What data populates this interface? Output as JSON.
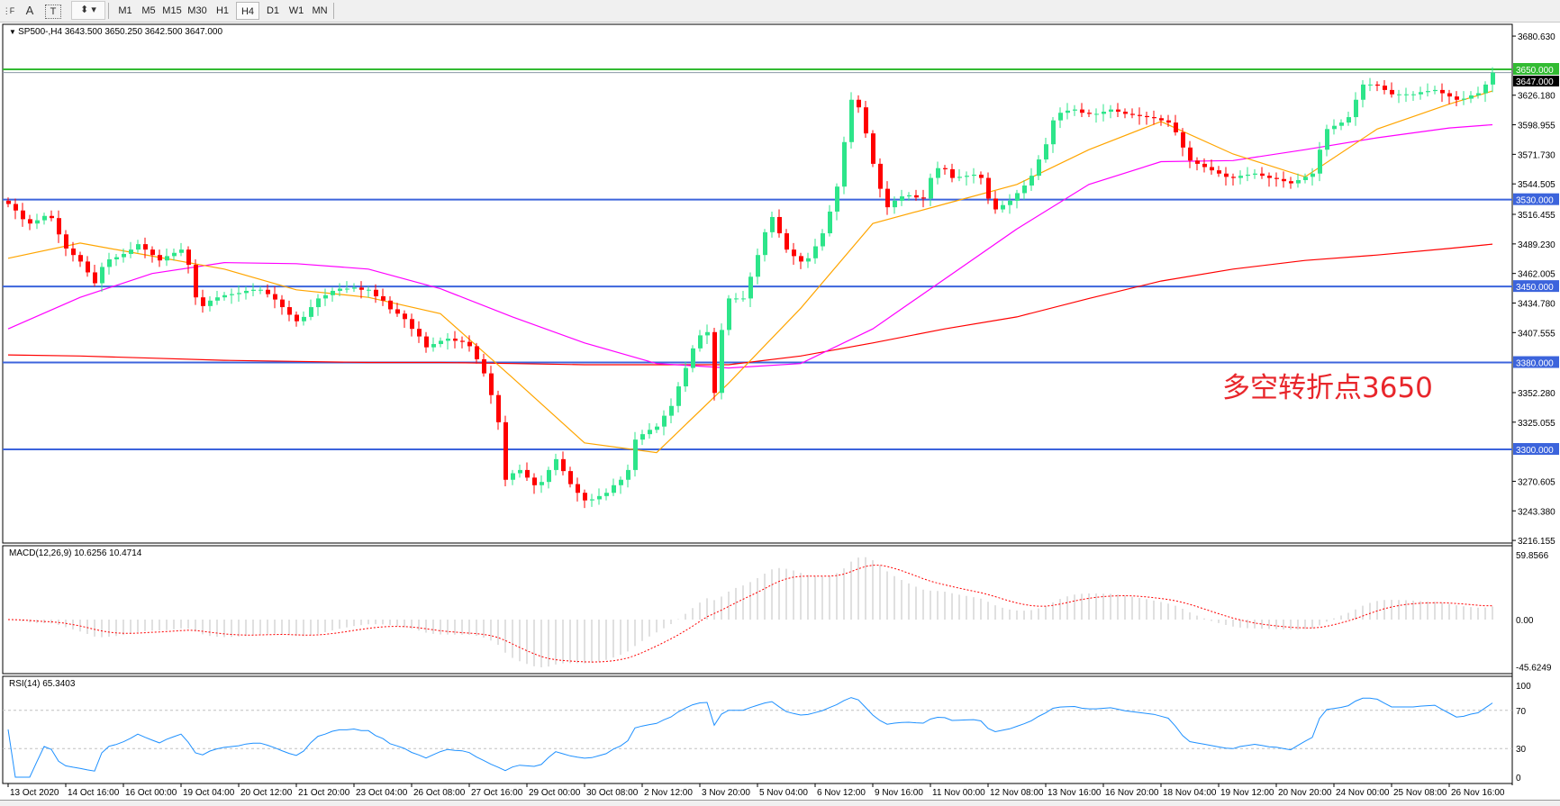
{
  "toolbar": {
    "icons": [
      "fibonacci-icon",
      "text-icon",
      "text-label-icon",
      "arrows-icon"
    ],
    "text_tool": "A",
    "timeframes": [
      "M1",
      "M5",
      "M15",
      "M30",
      "H1",
      "H4",
      "D1",
      "W1",
      "MN"
    ],
    "active_timeframe": "H4"
  },
  "chart": {
    "symbol_header": "SP500-,H4  3643.500 3650.250 3642.500 3647.000",
    "annotation": "多空转折点3650",
    "colors": {
      "bull": "#2de58a",
      "bear": "#ff0000",
      "ma_fast": "#ffa500",
      "ma_mid": "#ff00ff",
      "ma_slow": "#ff0000",
      "hline": "#3c64dc",
      "resistance": "#33bb33",
      "annotation": "#e8262b"
    },
    "horizontal_lines": [
      {
        "label": "3650.000",
        "value": 3650,
        "color": "#33bb33"
      },
      {
        "label": "3530.000",
        "value": 3530,
        "color": "#3c64dc"
      },
      {
        "label": "3450.000",
        "value": 3450,
        "color": "#3c64dc"
      },
      {
        "label": "3380.000",
        "value": 3380,
        "color": "#3c64dc"
      },
      {
        "label": "3300.000",
        "value": 3300,
        "color": "#3c64dc"
      }
    ],
    "current_price": {
      "label": "3647.000",
      "value": 3647
    },
    "price_axis": [
      "3680.630",
      "3626.180",
      "3598.955",
      "3571.730",
      "3544.505",
      "3516.455",
      "3489.230",
      "3462.005",
      "3434.780",
      "3407.555",
      "3352.280",
      "3325.055",
      "3270.605",
      "3243.380",
      "3216.155"
    ],
    "time_axis": [
      "13 Oct 2020",
      "14 Oct 16:00",
      "16 Oct 00:00",
      "19 Oct 04:00",
      "20 Oct 12:00",
      "21 Oct 20:00",
      "23 Oct 04:00",
      "26 Oct 08:00",
      "27 Oct 16:00",
      "29 Oct 00:00",
      "30 Oct 08:00",
      "2 Nov 12:00",
      "3 Nov 20:00",
      "5 Nov 04:00",
      "6 Nov 12:00",
      "9 Nov 16:00",
      "11 Nov 00:00",
      "12 Nov 08:00",
      "13 Nov 16:00",
      "16 Nov 20:00",
      "18 Nov 04:00",
      "19 Nov 12:00",
      "20 Nov 20:00",
      "24 Nov 00:00",
      "25 Nov 08:00",
      "26 Nov 16:00"
    ]
  },
  "macd": {
    "header": "MACD(12,26,9) 10.6256 10.4714",
    "axis": [
      "59.8566",
      "0.00",
      "-45.6249"
    ],
    "range": [
      -45.6249,
      59.8566
    ]
  },
  "rsi": {
    "header": "RSI(14) 65.3403",
    "axis": [
      "100",
      "70",
      "30",
      "0"
    ],
    "levels": [
      70,
      30
    ]
  },
  "chart_data": {
    "type": "candlestick",
    "symbol": "SP500-",
    "timeframe": "H4",
    "ylim": [
      3216.155,
      3680.63
    ],
    "close": [
      3526,
      3520,
      3512,
      3508,
      3511,
      3515,
      3513,
      3498,
      3485,
      3479,
      3473,
      3463,
      3453,
      3468,
      3475,
      3477,
      3480,
      3484,
      3489,
      3484,
      3479,
      3474,
      3478,
      3481,
      3484,
      3470,
      3440,
      3432,
      3437,
      3440,
      3442,
      3443,
      3444,
      3446,
      3447,
      3447,
      3443,
      3438,
      3431,
      3424,
      3418,
      3422,
      3431,
      3439,
      3442,
      3446,
      3448,
      3448,
      3449,
      3447,
      3447,
      3441,
      3437,
      3429,
      3425,
      3420,
      3411,
      3404,
      3394,
      3397,
      3400,
      3402,
      3400,
      3399,
      3395,
      3383,
      3370,
      3350,
      3325,
      3272,
      3278,
      3281,
      3274,
      3267,
      3270,
      3281,
      3291,
      3280,
      3268,
      3260,
      3253,
      3254,
      3257,
      3260,
      3267,
      3272,
      3281,
      3309,
      3314,
      3318,
      3321,
      3331,
      3340,
      3358,
      3375,
      3393,
      3405,
      3408,
      3352,
      3410,
      3439,
      3439,
      3439,
      3459,
      3479,
      3500,
      3514,
      3499,
      3484,
      3478,
      3473,
      3476,
      3487,
      3499,
      3519,
      3542,
      3583,
      3622,
      3615,
      3591,
      3563,
      3540,
      3523,
      3529,
      3533,
      3534,
      3532,
      3531,
      3550,
      3559,
      3558,
      3550,
      3551,
      3552,
      3553,
      3550,
      3531,
      3521,
      3525,
      3529,
      3536,
      3543,
      3552,
      3567,
      3581,
      3603,
      3610,
      3612,
      3613,
      3610,
      3609,
      3609,
      3611,
      3613,
      3611,
      3609,
      3608,
      3607,
      3606,
      3605,
      3603,
      3601,
      3592,
      3578,
      3566,
      3563,
      3560,
      3557,
      3554,
      3551,
      3550,
      3552,
      3553,
      3554,
      3552,
      3550,
      3549,
      3547,
      3545,
      3548,
      3551,
      3554,
      3576,
      3595,
      3598,
      3601,
      3606,
      3622,
      3636,
      3636,
      3635,
      3631,
      3627,
      3627,
      3627,
      3627,
      3629,
      3630,
      3631,
      3628,
      3625,
      3622,
      3623,
      3626,
      3628,
      3636,
      3647
    ],
    "moving_averages_every_10_bars": {
      "fast": [
        3476,
        3490,
        3478,
        3466,
        3447,
        3440,
        3425,
        3366,
        3306,
        3297,
        3361,
        3430,
        3508,
        3526,
        3544,
        3576,
        3602,
        3572,
        3551,
        3595,
        3618,
        3630
      ],
      "mid": [
        3411,
        3440,
        3462,
        3472,
        3471,
        3466,
        3448,
        3422,
        3398,
        3379,
        3375,
        3379,
        3411,
        3457,
        3503,
        3544,
        3565,
        3566,
        3576,
        3587,
        3596,
        3599
      ],
      "slow": [
        3387,
        3386,
        3384,
        3382,
        3381,
        3380,
        3380,
        3379,
        3378,
        3378,
        3378,
        3386,
        3398,
        3411,
        3422,
        3439,
        3455,
        3466,
        3474,
        3479,
        3485,
        3489
      ]
    }
  }
}
